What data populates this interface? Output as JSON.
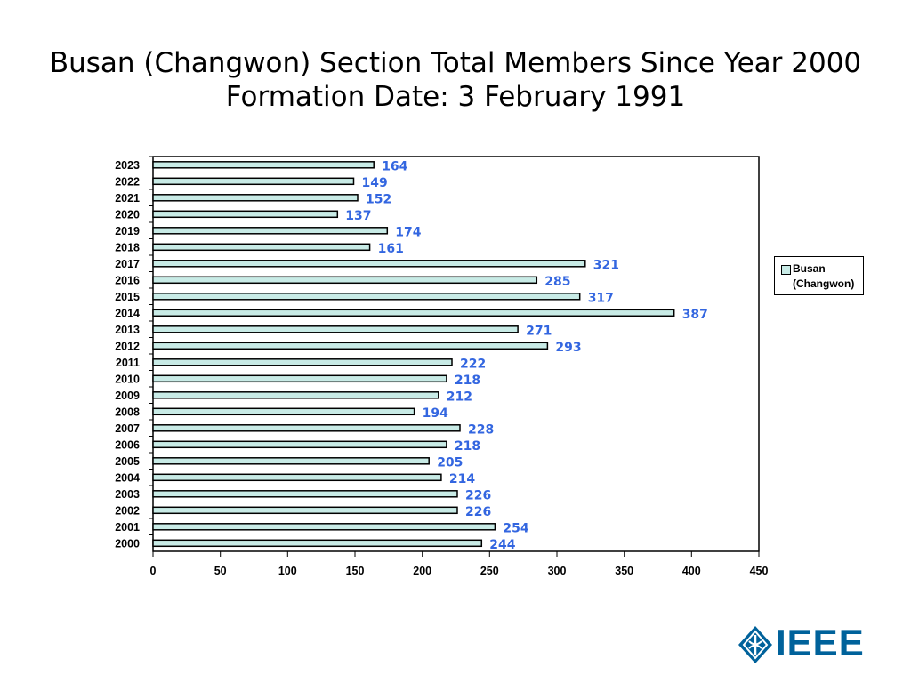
{
  "page": {
    "title_line1": "Busan (Changwon) Section Total Members Since Year 2000",
    "title_line2": "Formation Date: 3 February 1991"
  },
  "chart_data": {
    "type": "bar",
    "orientation": "horizontal",
    "title": "Busan (Changwon) Section Total Members Since Year 2000",
    "subtitle": "Formation Date: 3 February 1991",
    "categories": [
      "2023",
      "2022",
      "2021",
      "2020",
      "2019",
      "2018",
      "2017",
      "2016",
      "2015",
      "2014",
      "2013",
      "2012",
      "2011",
      "2010",
      "2009",
      "2008",
      "2007",
      "2006",
      "2005",
      "2004",
      "2003",
      "2002",
      "2001",
      "2000"
    ],
    "series": [
      {
        "name": "Busan (Changwon)",
        "values": [
          164,
          149,
          152,
          137,
          174,
          161,
          321,
          285,
          317,
          387,
          271,
          293,
          222,
          218,
          212,
          194,
          228,
          218,
          205,
          214,
          226,
          226,
          254,
          244
        ]
      }
    ],
    "xlim": [
      0,
      450
    ],
    "xticks": [
      0,
      50,
      100,
      150,
      200,
      250,
      300,
      350,
      400,
      450
    ],
    "xlabel": "",
    "ylabel": "",
    "grid": false,
    "legend": {
      "position": "right",
      "label_line1": "Busan",
      "label_line2": "(Changwon)"
    },
    "colors": {
      "bar_fill": "#c8ebe6",
      "bar_stroke": "#000000",
      "data_label": "#3366e0"
    }
  },
  "logo": {
    "text": "IEEE",
    "icon": "ieee-diamond-icon",
    "color": "#00629b"
  }
}
